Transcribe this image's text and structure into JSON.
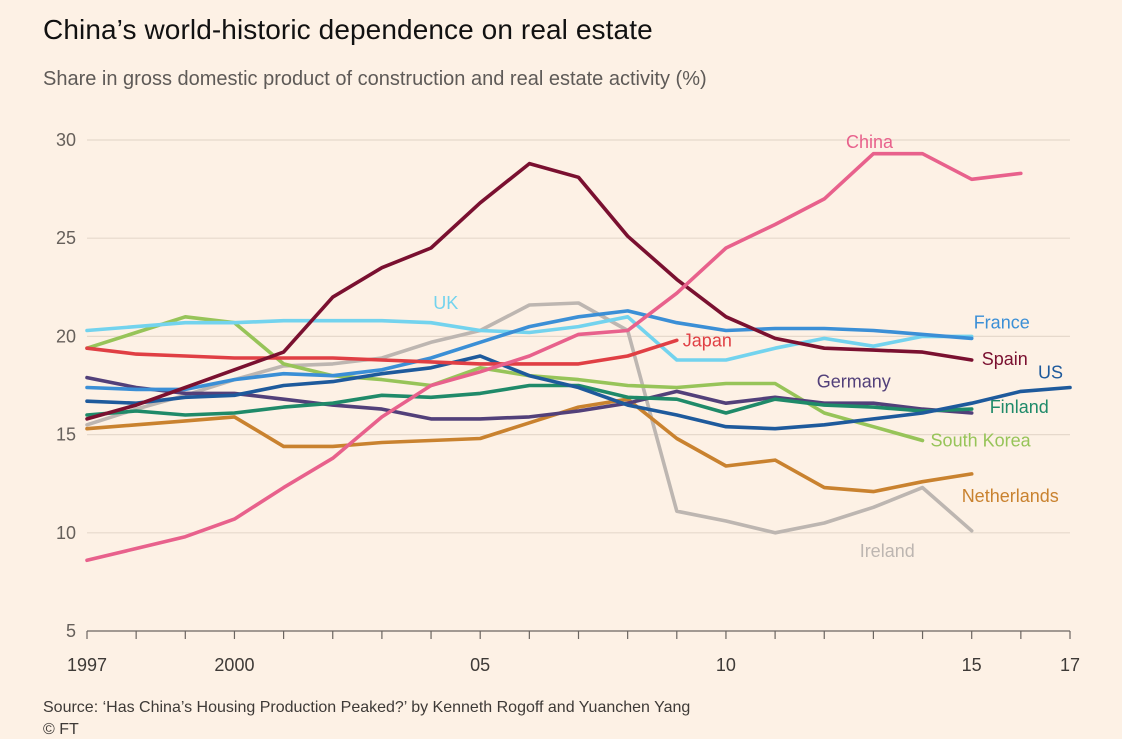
{
  "title": "China’s world-historic dependence on real estate",
  "subtitle": "Share in gross domestic product of construction and real estate activity (%)",
  "source": "Source: ‘Has China’s Housing Production Peaked?’ by Kenneth Rogoff and Yuanchen Yang",
  "copyright": "© FT",
  "chart_data": {
    "type": "line",
    "title": "China’s world-historic dependence on real estate",
    "subtitle": "Share in gross domestic product of construction and real estate activity (%)",
    "xlabel": "",
    "ylabel": "",
    "xlim": [
      1997,
      2017
    ],
    "ylim": [
      5,
      30
    ],
    "x_ticks": [
      1997,
      1998,
      1999,
      2000,
      2001,
      2002,
      2003,
      2004,
      2005,
      2006,
      2007,
      2008,
      2009,
      2010,
      2011,
      2012,
      2013,
      2014,
      2015,
      2016,
      2017
    ],
    "x_tick_labels": [
      {
        "year": 1997,
        "label": "1997"
      },
      {
        "year": 2000,
        "label": "2000"
      },
      {
        "year": 2005,
        "label": "05"
      },
      {
        "year": 2010,
        "label": "10"
      },
      {
        "year": 2015,
        "label": "15"
      },
      {
        "year": 2017,
        "label": "17"
      }
    ],
    "y_ticks": [
      5,
      10,
      15,
      20,
      25,
      30
    ],
    "grid": "horizontal",
    "legend": "direct labels",
    "series": [
      {
        "name": "Ireland",
        "color": "#bdb6b1",
        "label_anchor": "end-below",
        "x": [
          1997,
          1998,
          1999,
          2000,
          2001,
          2002,
          2003,
          2004,
          2005,
          2006,
          2007,
          2008,
          2009,
          2010,
          2011,
          2012,
          2013,
          2014,
          2015
        ],
        "y": [
          15.5,
          16.3,
          17.0,
          17.8,
          18.5,
          18.6,
          18.9,
          19.7,
          20.3,
          21.6,
          21.7,
          20.3,
          11.1,
          10.6,
          10.0,
          10.5,
          11.3,
          12.3,
          10.1
        ]
      },
      {
        "name": "Netherlands",
        "color": "#c9822f",
        "label_anchor": "end-below",
        "x": [
          1997,
          1998,
          1999,
          2000,
          2001,
          2002,
          2003,
          2004,
          2005,
          2006,
          2007,
          2008,
          2009,
          2010,
          2011,
          2012,
          2013,
          2014,
          2015
        ],
        "y": [
          15.3,
          15.5,
          15.7,
          15.9,
          14.4,
          14.4,
          14.6,
          14.7,
          14.8,
          15.6,
          16.4,
          16.8,
          14.8,
          13.4,
          13.7,
          12.3,
          12.1,
          12.6,
          13.0
        ]
      },
      {
        "name": "South Korea",
        "color": "#97c459",
        "label_anchor": "end",
        "x": [
          1997,
          1998,
          1999,
          2000,
          2001,
          2002,
          2003,
          2004,
          2005,
          2006,
          2007,
          2008,
          2009,
          2010,
          2011,
          2012,
          2013,
          2014
        ],
        "y": [
          19.4,
          20.2,
          21.0,
          20.7,
          18.6,
          18.0,
          17.8,
          17.5,
          18.4,
          18.0,
          17.8,
          17.5,
          17.4,
          17.6,
          17.6,
          16.1,
          15.4,
          14.7
        ]
      },
      {
        "name": "UK",
        "color": "#73d3ee",
        "label_anchor": "mid-above",
        "x": [
          1997,
          1998,
          1999,
          2000,
          2001,
          2002,
          2003,
          2004,
          2005,
          2006,
          2007,
          2008,
          2009,
          2010,
          2011,
          2012,
          2013,
          2014,
          2015
        ],
        "y": [
          20.3,
          20.5,
          20.7,
          20.7,
          20.8,
          20.8,
          20.8,
          20.7,
          20.3,
          20.2,
          20.5,
          21.0,
          18.8,
          18.8,
          19.4,
          19.9,
          19.5,
          20.0,
          20.0
        ]
      },
      {
        "name": "Germany",
        "color": "#52407a",
        "label_anchor": "mid-above",
        "x": [
          1997,
          1998,
          1999,
          2000,
          2001,
          2002,
          2003,
          2004,
          2005,
          2006,
          2007,
          2008,
          2009,
          2010,
          2011,
          2012,
          2013,
          2014,
          2015
        ],
        "y": [
          17.9,
          17.4,
          17.1,
          17.1,
          16.8,
          16.5,
          16.3,
          15.8,
          15.8,
          15.9,
          16.2,
          16.6,
          17.2,
          16.6,
          16.9,
          16.6,
          16.6,
          16.3,
          16.1
        ]
      },
      {
        "name": "Finland",
        "color": "#1f8a69",
        "label_anchor": "end",
        "x": [
          1997,
          1998,
          1999,
          2000,
          2001,
          2002,
          2003,
          2004,
          2005,
          2006,
          2007,
          2008,
          2009,
          2010,
          2011,
          2012,
          2013,
          2014,
          2015
        ],
        "y": [
          16.0,
          16.2,
          16.0,
          16.1,
          16.4,
          16.6,
          17.0,
          16.9,
          17.1,
          17.5,
          17.5,
          16.9,
          16.8,
          16.1,
          16.8,
          16.5,
          16.4,
          16.2,
          16.3
        ]
      },
      {
        "name": "France",
        "color": "#3b8fd6",
        "label_anchor": "end-above",
        "x": [
          1997,
          1998,
          1999,
          2000,
          2001,
          2002,
          2003,
          2004,
          2005,
          2006,
          2007,
          2008,
          2009,
          2010,
          2011,
          2012,
          2013,
          2014,
          2015
        ],
        "y": [
          17.4,
          17.3,
          17.3,
          17.8,
          18.1,
          18.0,
          18.3,
          18.9,
          19.7,
          20.5,
          21.0,
          21.3,
          20.7,
          20.3,
          20.4,
          20.4,
          20.3,
          20.1,
          19.9
        ]
      },
      {
        "name": "US",
        "color": "#1e5a9c",
        "label_anchor": "end-above",
        "x": [
          1997,
          1998,
          1999,
          2000,
          2001,
          2002,
          2003,
          2004,
          2005,
          2006,
          2007,
          2008,
          2009,
          2010,
          2011,
          2012,
          2013,
          2014,
          2015,
          2016,
          2017
        ],
        "y": [
          16.7,
          16.6,
          16.9,
          17.0,
          17.5,
          17.7,
          18.1,
          18.4,
          19.0,
          18.0,
          17.4,
          16.5,
          16.0,
          15.4,
          15.3,
          15.5,
          15.8,
          16.1,
          16.6,
          17.2,
          17.4
        ]
      },
      {
        "name": "Japan",
        "color": "#e03f44",
        "label_anchor": "end",
        "x": [
          1997,
          1998,
          1999,
          2000,
          2001,
          2002,
          2003,
          2004,
          2005,
          2006,
          2007,
          2008,
          2009
        ],
        "y": [
          19.4,
          19.1,
          19.0,
          18.9,
          18.9,
          18.9,
          18.8,
          18.7,
          18.6,
          18.6,
          18.6,
          19.0,
          19.8
        ]
      },
      {
        "name": "Spain",
        "color": "#7a1030",
        "label_anchor": "end-above",
        "x": [
          1997,
          1998,
          1999,
          2000,
          2001,
          2002,
          2003,
          2004,
          2005,
          2006,
          2007,
          2008,
          2009,
          2010,
          2011,
          2012,
          2013,
          2014,
          2015
        ],
        "y": [
          15.8,
          16.5,
          17.4,
          18.3,
          19.2,
          22.0,
          23.5,
          24.5,
          26.8,
          28.8,
          28.1,
          25.1,
          22.9,
          21.0,
          19.9,
          19.4,
          19.3,
          19.2,
          18.8
        ]
      },
      {
        "name": "China",
        "color": "#e8618c",
        "label_anchor": "mid-above",
        "x": [
          1997,
          1998,
          1999,
          2000,
          2001,
          2002,
          2003,
          2004,
          2005,
          2006,
          2007,
          2008,
          2009,
          2010,
          2011,
          2012,
          2013,
          2014,
          2015,
          2016
        ],
        "y": [
          8.6,
          9.2,
          9.8,
          10.7,
          12.3,
          13.8,
          15.9,
          17.5,
          18.2,
          19.0,
          20.1,
          20.3,
          22.2,
          24.5,
          25.7,
          27.0,
          29.3,
          29.3,
          28.0,
          28.3
        ]
      }
    ]
  }
}
